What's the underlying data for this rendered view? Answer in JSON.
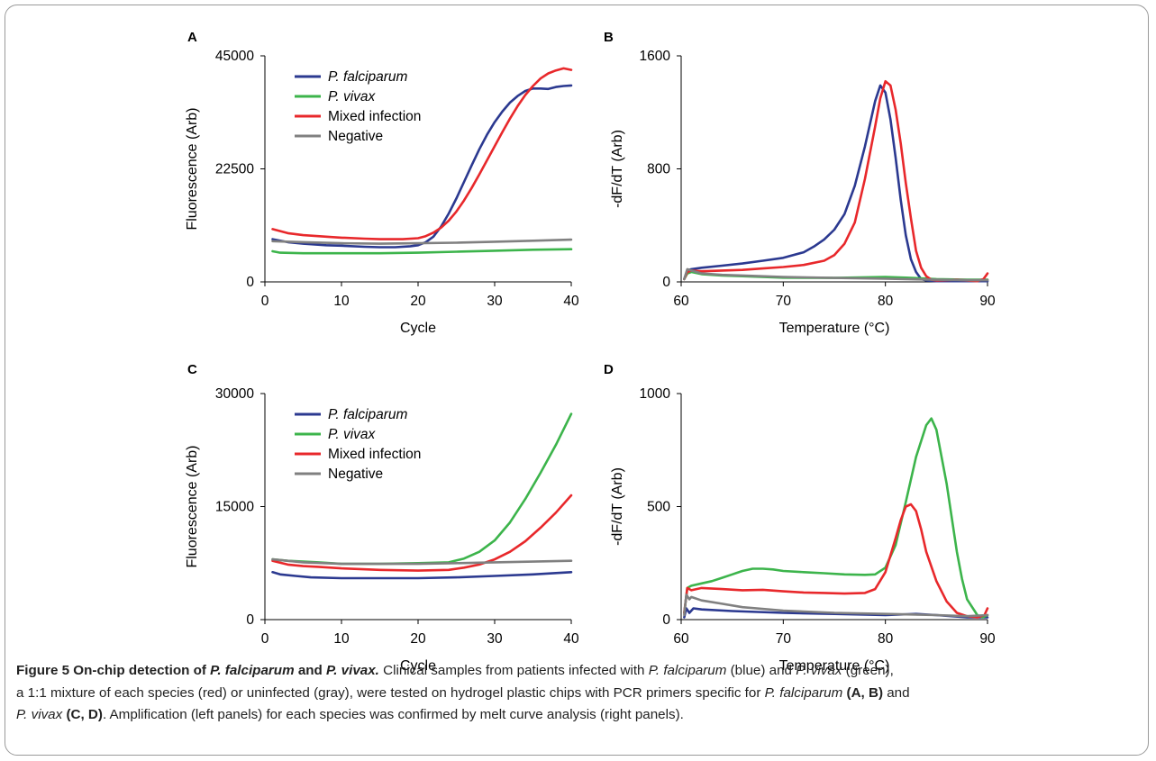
{
  "chart_data": [
    {
      "panel": "A",
      "type": "line",
      "xlabel": "Cycle",
      "ylabel": "Fluorescence (Arb)",
      "xlim": [
        0,
        40
      ],
      "ylim": [
        0,
        45000
      ],
      "xticks": [
        0,
        10,
        20,
        30,
        40
      ],
      "yticks": [
        0,
        22500,
        45000
      ],
      "legend": "top-left",
      "series": [
        {
          "name": "P. falciparum",
          "italic": true,
          "color": "#2b3990",
          "x": [
            1,
            3,
            5,
            8,
            10,
            13,
            15,
            17,
            19,
            20,
            21,
            22,
            23,
            24,
            25,
            26,
            27,
            28,
            29,
            30,
            31,
            32,
            33,
            34,
            35,
            36,
            37,
            38,
            39,
            40
          ],
          "y": [
            8500,
            7900,
            7600,
            7300,
            7200,
            7000,
            6900,
            6900,
            7100,
            7300,
            7900,
            9000,
            11000,
            13600,
            16600,
            19900,
            23200,
            26400,
            29300,
            31800,
            33900,
            35700,
            37000,
            38000,
            38500,
            38500,
            38400,
            38800,
            39000,
            39100
          ]
        },
        {
          "name": "P. vivax",
          "italic": true,
          "color": "#3cb44b",
          "x": [
            1,
            2,
            5,
            10,
            15,
            20,
            25,
            30,
            35,
            40
          ],
          "y": [
            6100,
            5800,
            5700,
            5700,
            5700,
            5800,
            6000,
            6200,
            6400,
            6500
          ]
        },
        {
          "name": "Mixed infection",
          "italic": false,
          "color": "#e8282b",
          "x": [
            1,
            3,
            5,
            8,
            10,
            13,
            15,
            18,
            20,
            21,
            22,
            23,
            24,
            25,
            26,
            27,
            28,
            29,
            30,
            31,
            32,
            33,
            34,
            35,
            36,
            37,
            38,
            39,
            40
          ],
          "y": [
            10500,
            9700,
            9300,
            9000,
            8800,
            8600,
            8500,
            8500,
            8700,
            9100,
            9800,
            10800,
            12200,
            14000,
            16200,
            18700,
            21400,
            24200,
            27000,
            29800,
            32500,
            35000,
            37200,
            39000,
            40500,
            41500,
            42100,
            42500,
            42200
          ]
        },
        {
          "name": "Negative",
          "italic": false,
          "color": "#808080",
          "x": [
            1,
            5,
            10,
            15,
            20,
            25,
            30,
            35,
            40
          ],
          "y": [
            8100,
            7900,
            7700,
            7600,
            7700,
            7800,
            8000,
            8200,
            8400
          ]
        }
      ]
    },
    {
      "panel": "B",
      "type": "line",
      "xlabel": "Temperature (°C)",
      "ylabel": "-dF/dT (Arb)",
      "xlim": [
        60,
        90
      ],
      "ylim": [
        0,
        1600
      ],
      "xticks": [
        60,
        70,
        80,
        90
      ],
      "yticks": [
        0,
        800,
        1600
      ],
      "series": [
        {
          "color": "#2b3990",
          "x": [
            60.3,
            60.6,
            61.0,
            62,
            64,
            66,
            68,
            70,
            72,
            73,
            74,
            75,
            76,
            77,
            78,
            79,
            79.5,
            80,
            80.5,
            81,
            81.5,
            82,
            82.5,
            83,
            83.5,
            84,
            85,
            88,
            90
          ],
          "y": [
            20,
            80,
            90,
            100,
            115,
            130,
            150,
            170,
            210,
            250,
            300,
            370,
            480,
            680,
            960,
            1280,
            1390,
            1340,
            1150,
            880,
            580,
            330,
            160,
            70,
            20,
            10,
            5,
            5,
            5
          ]
        },
        {
          "name": "",
          "color": "#3cb44b",
          "x": [
            60.3,
            60.6,
            61,
            62,
            64,
            66,
            70,
            75,
            80,
            82,
            85,
            88,
            90
          ],
          "y": [
            20,
            60,
            70,
            55,
            45,
            40,
            30,
            28,
            35,
            30,
            20,
            15,
            15
          ]
        },
        {
          "color": "#e8282b",
          "x": [
            60.3,
            60.6,
            61,
            62,
            64,
            66,
            68,
            70,
            72,
            74,
            75,
            76,
            77,
            78,
            79,
            79.5,
            80,
            80.5,
            81,
            81.5,
            82,
            82.5,
            83,
            83.5,
            84,
            84.5,
            85,
            87,
            89,
            89.6,
            90
          ],
          "y": [
            20,
            70,
            80,
            75,
            80,
            85,
            95,
            105,
            120,
            150,
            190,
            270,
            420,
            730,
            1100,
            1300,
            1420,
            1390,
            1220,
            980,
            700,
            450,
            220,
            100,
            40,
            15,
            10,
            15,
            5,
            20,
            60
          ]
        },
        {
          "color": "#808080",
          "x": [
            60.3,
            60.6,
            61,
            62,
            64,
            66,
            70,
            75,
            80,
            85,
            88,
            90
          ],
          "y": [
            20,
            90,
            80,
            60,
            50,
            45,
            35,
            28,
            22,
            15,
            12,
            12
          ]
        }
      ]
    },
    {
      "panel": "C",
      "type": "line",
      "xlabel": "Cycle",
      "ylabel": "Fluorescence (Arb)",
      "xlim": [
        0,
        40
      ],
      "ylim": [
        0,
        30000
      ],
      "xticks": [
        0,
        10,
        20,
        30,
        40
      ],
      "yticks": [
        0,
        15000,
        30000
      ],
      "legend": "top-left",
      "series": [
        {
          "name": "P. falciparum",
          "italic": true,
          "color": "#2b3990",
          "x": [
            1,
            2,
            4,
            6,
            10,
            15,
            20,
            25,
            30,
            35,
            40
          ],
          "y": [
            6300,
            6000,
            5800,
            5600,
            5500,
            5500,
            5500,
            5600,
            5800,
            6000,
            6300
          ]
        },
        {
          "name": "P. vivax",
          "italic": true,
          "color": "#3cb44b",
          "x": [
            1,
            3,
            5,
            7,
            10,
            15,
            20,
            24,
            26,
            28,
            30,
            32,
            34,
            36,
            38,
            40
          ],
          "y": [
            8000,
            7800,
            7700,
            7600,
            7400,
            7400,
            7500,
            7600,
            8100,
            9000,
            10500,
            12900,
            16000,
            19500,
            23200,
            27300
          ]
        },
        {
          "name": "Mixed infection",
          "italic": false,
          "color": "#e8282b",
          "x": [
            1,
            3,
            5,
            7,
            10,
            15,
            20,
            24,
            26,
            28,
            30,
            32,
            34,
            36,
            38,
            40
          ],
          "y": [
            7800,
            7300,
            7100,
            7000,
            6800,
            6600,
            6500,
            6600,
            6900,
            7300,
            8000,
            9000,
            10400,
            12200,
            14200,
            16500
          ]
        },
        {
          "name": "Negative",
          "italic": false,
          "color": "#808080",
          "x": [
            1,
            5,
            10,
            15,
            20,
            25,
            30,
            35,
            40
          ],
          "y": [
            8000,
            7600,
            7400,
            7400,
            7400,
            7500,
            7600,
            7700,
            7800
          ]
        }
      ]
    },
    {
      "panel": "D",
      "type": "line",
      "xlabel": "Temperature (°C)",
      "ylabel": "-dF/dT (Arb)",
      "xlim": [
        60,
        90
      ],
      "ylim": [
        0,
        1000
      ],
      "xticks": [
        60,
        70,
        80,
        90
      ],
      "yticks": [
        0,
        500,
        1000
      ],
      "series": [
        {
          "color": "#2b3990",
          "x": [
            60.3,
            60.5,
            60.8,
            61.2,
            62,
            65,
            70,
            75,
            80,
            83,
            85,
            88,
            90
          ],
          "y": [
            10,
            50,
            30,
            50,
            45,
            38,
            30,
            25,
            20,
            25,
            20,
            10,
            10
          ]
        },
        {
          "color": "#3cb44b",
          "x": [
            60.3,
            60.6,
            61,
            62,
            63,
            64,
            65,
            66,
            67,
            68,
            69,
            70,
            72,
            74,
            76,
            78,
            79,
            80,
            81,
            82,
            83,
            84,
            84.5,
            85,
            86,
            87,
            87.5,
            88,
            89,
            89.5,
            90
          ],
          "y": [
            30,
            140,
            150,
            160,
            170,
            185,
            200,
            215,
            225,
            225,
            222,
            215,
            210,
            205,
            200,
            198,
            200,
            230,
            330,
            520,
            720,
            860,
            890,
            840,
            600,
            300,
            180,
            90,
            20,
            10,
            20
          ]
        },
        {
          "color": "#e8282b",
          "x": [
            60.3,
            60.6,
            61,
            62,
            64,
            66,
            68,
            70,
            72,
            74,
            76,
            78,
            79,
            80,
            81,
            81.5,
            82,
            82.5,
            83,
            83.5,
            84,
            85,
            86,
            87,
            88,
            89,
            89.7,
            90
          ],
          "y": [
            30,
            140,
            130,
            140,
            135,
            130,
            132,
            125,
            120,
            118,
            115,
            118,
            135,
            210,
            360,
            440,
            500,
            510,
            480,
            400,
            300,
            170,
            80,
            30,
            15,
            10,
            20,
            50
          ]
        },
        {
          "color": "#808080",
          "x": [
            60.3,
            60.5,
            60.8,
            61,
            62,
            64,
            66,
            70,
            75,
            80,
            85,
            88,
            90
          ],
          "y": [
            20,
            110,
            90,
            100,
            85,
            70,
            55,
            40,
            30,
            25,
            20,
            15,
            20
          ]
        }
      ]
    }
  ],
  "caption": {
    "lines": [
      [
        {
          "t": "Figure 5 On-chip detection of ",
          "s": "b"
        },
        {
          "t": "P. falciparum",
          "s": "bi"
        },
        {
          "t": " and ",
          "s": "b"
        },
        {
          "t": "P. vivax.",
          "s": "bi"
        },
        {
          "t": " Clinical samples from patients infected with ",
          "s": "n"
        },
        {
          "t": "P. falciparum",
          "s": "i"
        },
        {
          "t": " (blue) and ",
          "s": "n"
        },
        {
          "t": "P. vivax",
          "s": "i"
        },
        {
          "t": " (green),",
          "s": "n"
        }
      ],
      [
        {
          "t": "a 1:1 mixture of each species (red) or uninfected (gray), were tested on hydrogel plastic chips with PCR primers specific for ",
          "s": "n"
        },
        {
          "t": "P. falciparum",
          "s": "i"
        },
        {
          "t": " ",
          "s": "n"
        },
        {
          "t": "(A, B)",
          "s": "b"
        },
        {
          "t": " and",
          "s": "n"
        }
      ],
      [
        {
          "t": "P. vivax",
          "s": "i"
        },
        {
          "t": " ",
          "s": "n"
        },
        {
          "t": "(C, D)",
          "s": "b"
        },
        {
          "t": ". Amplification (left panels) for each species was confirmed by melt curve analysis (right panels).",
          "s": "n"
        }
      ]
    ]
  }
}
